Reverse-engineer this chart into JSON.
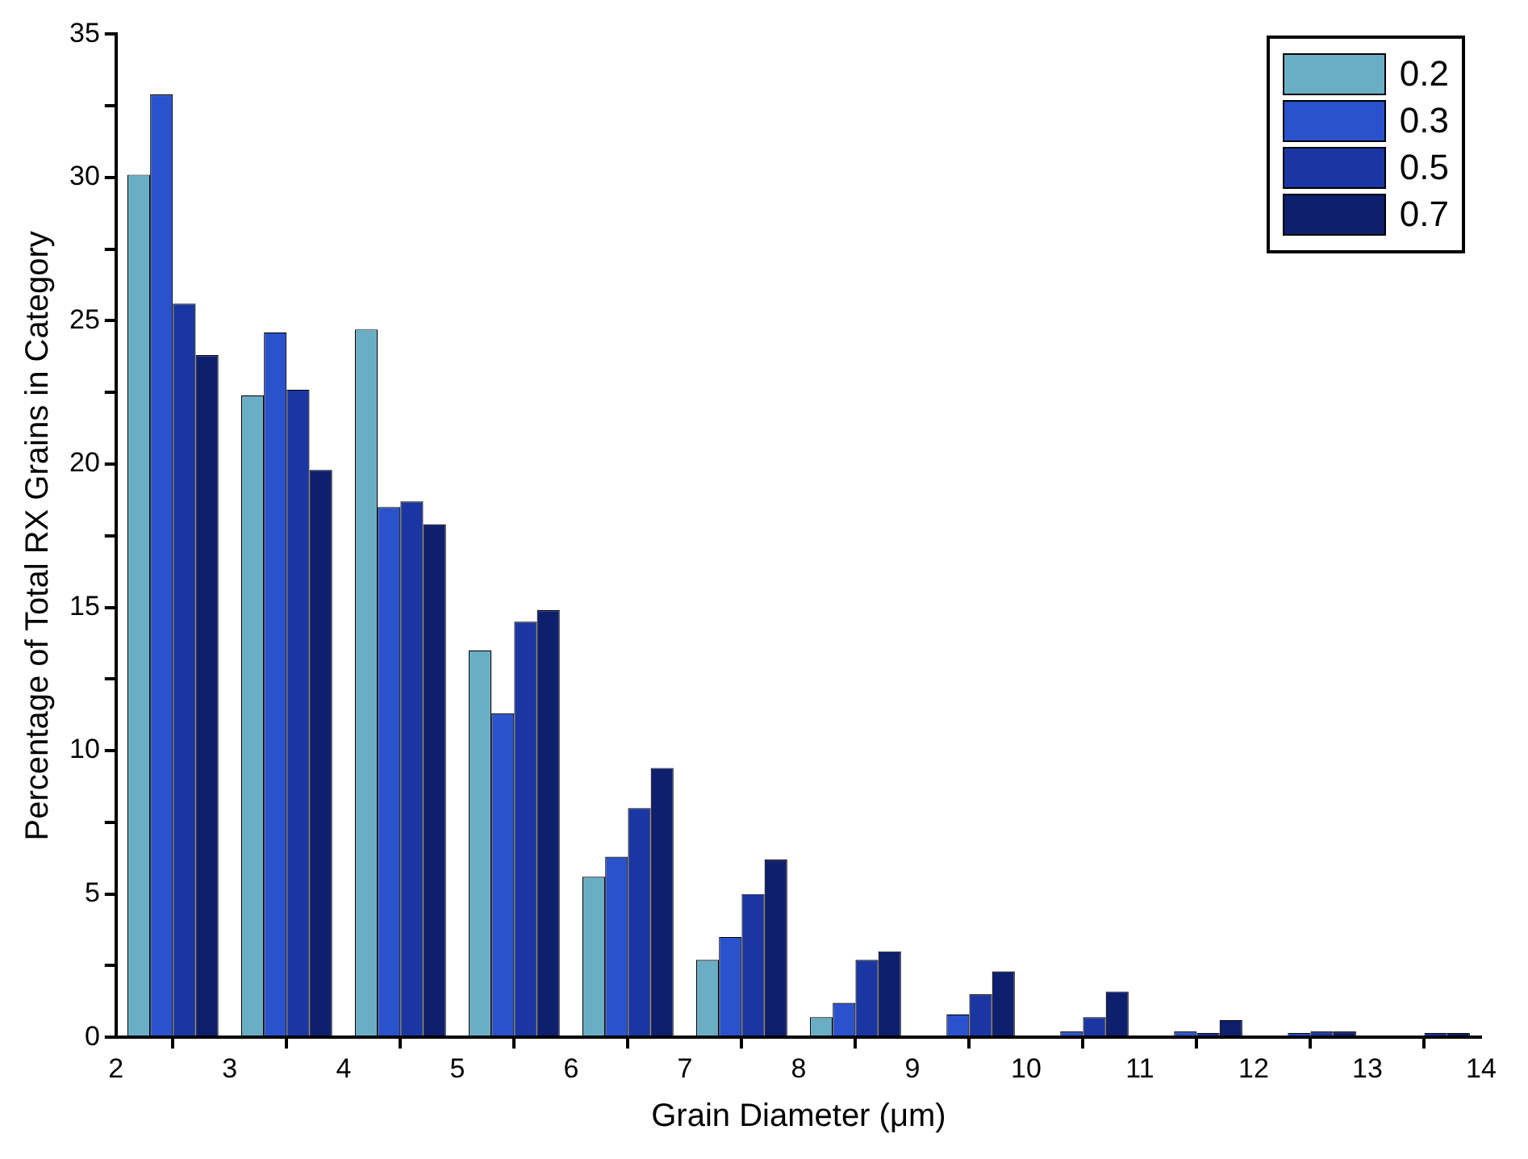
{
  "chart_data": {
    "type": "bar",
    "xlabel": "Grain Diameter (μm)",
    "ylabel": "Percentage of Total RX Grains in Category",
    "x": [
      2.5,
      3.5,
      4.5,
      5.5,
      6.5,
      7.5,
      8.5,
      9.5,
      10.5,
      11.5,
      12.5,
      13.5
    ],
    "series": [
      {
        "name": "0.2",
        "color": "#6aaec6",
        "values": [
          30.1,
          22.4,
          24.7,
          13.5,
          5.6,
          2.7,
          0.7,
          null,
          null,
          null,
          null,
          null
        ]
      },
      {
        "name": "0.3",
        "color": "#2a52cc",
        "values": [
          32.9,
          24.6,
          18.5,
          11.3,
          6.3,
          3.5,
          1.2,
          0.8,
          0.2,
          0.2,
          0.15,
          null
        ]
      },
      {
        "name": "0.5",
        "color": "#1a36a2",
        "values": [
          25.6,
          22.6,
          18.7,
          14.5,
          8.0,
          5.0,
          2.7,
          1.5,
          0.7,
          0.15,
          0.2,
          0.15
        ]
      },
      {
        "name": "0.7",
        "color": "#0e1f6e",
        "values": [
          23.8,
          19.8,
          17.9,
          14.9,
          9.4,
          6.2,
          3.0,
          2.3,
          1.6,
          0.6,
          0.2,
          0.15
        ]
      }
    ],
    "xlim": [
      2,
      14
    ],
    "xticks": [
      2,
      3,
      4,
      5,
      6,
      7,
      8,
      9,
      10,
      11,
      12,
      13,
      14
    ],
    "ylim": [
      0,
      35
    ],
    "yticks": [
      0,
      {
        "value": 2.5,
        "label": null
      },
      5,
      {
        "value": 7.5,
        "label": null
      },
      10,
      {
        "value": 12.5,
        "label": null
      },
      15,
      {
        "value": 17.5,
        "label": null
      },
      20,
      {
        "value": 22.5,
        "label": null
      },
      25,
      {
        "value": 27.5,
        "label": null
      },
      30,
      {
        "value": 32.5,
        "label": null
      },
      35
    ],
    "grid": false,
    "legend": "top right"
  }
}
